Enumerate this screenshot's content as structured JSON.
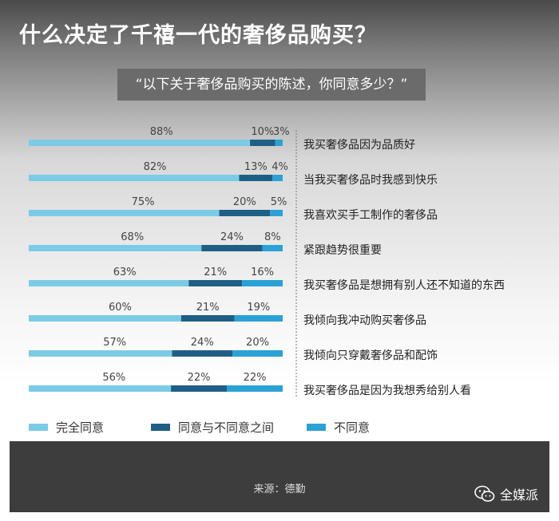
{
  "title": "什么决定了千禧一代的奢侈品购买？",
  "subtitle": "“以下关于奢侈品购买的陈述，你同意多少？”",
  "source": "来源：德勤",
  "brand": "全媒派",
  "colors": {
    "agree": "#7ccbe6",
    "neutral": "#1f5f86",
    "disagree": "#2aa2d6",
    "subtitle_bg": "#6b6b6b",
    "footer_bg": "#3d3d3d"
  },
  "chart_data": {
    "type": "bar",
    "orientation": "horizontal",
    "stacked": true,
    "xlim": [
      0,
      100
    ],
    "categories": [
      "我买奢侈品因为品质好",
      "当我买奢侈品时我感到快乐",
      "我喜欢买手工制作的奢侈品",
      "紧跟趋势很重要",
      "我买奢侈品是想拥有别人还不知道的东西",
      "我倾向我冲动购买奢侈品",
      "我倾向只穿戴奢侈品和配饰",
      "我买奢侈品是因为我想秀给别人看"
    ],
    "series": [
      {
        "name": "完全同意",
        "color": "#7ccbe6",
        "values": [
          88,
          82,
          75,
          68,
          63,
          60,
          57,
          56
        ],
        "labels": [
          "88%",
          "82%",
          "75%",
          "68%",
          "63%",
          "60%",
          "57%",
          "56%"
        ]
      },
      {
        "name": "同意与不同意之间",
        "color": "#1f5f86",
        "values": [
          10,
          13,
          20,
          24,
          21,
          21,
          24,
          22
        ],
        "labels": [
          "10%",
          "13%",
          "20%",
          "24%",
          "21%",
          "21%",
          "24%",
          "22%"
        ]
      },
      {
        "name": "不同意",
        "color": "#2aa2d6",
        "values": [
          3,
          4,
          5,
          8,
          16,
          19,
          20,
          22
        ],
        "labels": [
          "3%",
          "4%",
          "5%",
          "8%",
          "16%",
          "19%",
          "20%",
          "22%"
        ]
      }
    ],
    "legend_position": "bottom"
  }
}
